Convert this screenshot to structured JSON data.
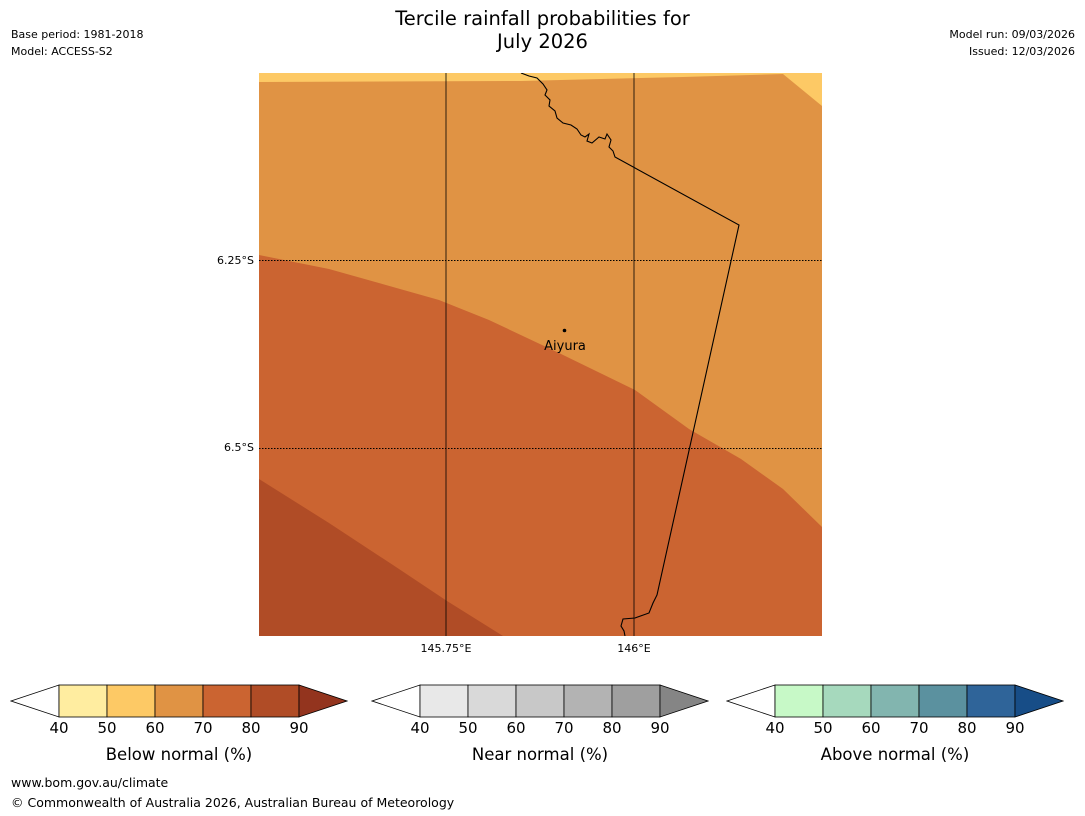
{
  "header": {
    "title_line1": "Tercile rainfall probabilities for",
    "title_line2": "July 2026",
    "base_period": "Base period: 1981-2018",
    "model": "Model: ACCESS-S2",
    "model_run": "Model run: 09/03/2026",
    "issued": "Issued: 12/03/2026"
  },
  "map": {
    "lat_labels": [
      "6.25°S",
      "6.5°S"
    ],
    "lon_labels": [
      "145.75°E",
      "146°E"
    ],
    "place": {
      "name": "Aiyura"
    },
    "colors": {
      "below_50_60": "#fdc965",
      "below_60_70": "#e09344",
      "below_70_80": "#cb6431",
      "below_80_90": "#b04c26"
    }
  },
  "colorbars": [
    {
      "label": "Below normal (%)",
      "ticks": [
        "40",
        "50",
        "60",
        "70",
        "80",
        "90"
      ],
      "colors": [
        "#ffeda0",
        "#fdc965",
        "#e09344",
        "#cb6431",
        "#b04c26"
      ],
      "extend_color": "#93341e"
    },
    {
      "label": "Near normal (%)",
      "ticks": [
        "40",
        "50",
        "60",
        "70",
        "80",
        "90"
      ],
      "colors": [
        "#e8e8e8",
        "#d9d9d9",
        "#c8c8c8",
        "#b3b3b3",
        "#9f9f9f"
      ],
      "extend_color": "#858585"
    },
    {
      "label": "Above normal (%)",
      "ticks": [
        "40",
        "50",
        "60",
        "70",
        "80",
        "90"
      ],
      "colors": [
        "#c7f9c7",
        "#a6d9bd",
        "#82b5af",
        "#5b919f",
        "#2f6499"
      ],
      "extend_color": "#174d87"
    }
  ],
  "footer": {
    "url": "www.bom.gov.au/climate",
    "copyright": "© Commonwealth of Australia 2026, Australian Bureau of Meteorology"
  }
}
